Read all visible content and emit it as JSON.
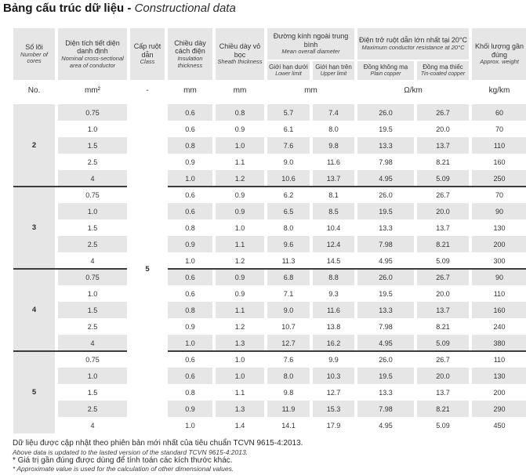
{
  "title": {
    "vi": "Bảng cấu trúc dữ liệu",
    "sep": " - ",
    "en": "Constructional data"
  },
  "table": {
    "headers": {
      "cores": {
        "vi": "Số lõi",
        "en": "Number of cores"
      },
      "area": {
        "vi": "Diện tích tiết diện danh định",
        "en": "Nominal cross-sectional area of conductor"
      },
      "class": {
        "vi": "Cấp ruột dẫn",
        "en": "Class"
      },
      "insulation": {
        "vi": "Chiều dày cách điện",
        "en": "Insulation thickness"
      },
      "sheath": {
        "vi": "Chiều dày vỏ bọc",
        "en": "Sheath thickness"
      },
      "diameter": {
        "vi": "Đường kính ngoài trung bình",
        "en": "Mean overall diameter",
        "sub": {
          "lower": {
            "vi": "Giới hạn dưới",
            "en": "Lower limit"
          },
          "upper": {
            "vi": "Giới hạn trên",
            "en": "Upper limit"
          }
        }
      },
      "resistance": {
        "vi": "Điện trở ruột dẫn lớn nhất tại 20°C",
        "en": "Maximum conductor resistance at 20°C",
        "sub": {
          "plain": {
            "vi": "Đồng không mạ",
            "en": "Plain copper"
          },
          "tinned": {
            "vi": "Đồng mạ thiếc",
            "en": "Tin-coated copper"
          }
        }
      },
      "weight": {
        "vi": "Khối lượng gần đúng",
        "en": "Approx. weight"
      }
    },
    "units": {
      "cores": "No.",
      "area": "mm²",
      "class": "-",
      "insulation": "mm",
      "sheath": "mm",
      "diameter": "mm",
      "resistance": "Ω/km",
      "weight": "kg/km"
    },
    "class_value": "5",
    "groups": [
      {
        "cores": "2",
        "rows": [
          [
            "0.75",
            "0.6",
            "0.8",
            "5.7",
            "7.4",
            "26.0",
            "26.7",
            "60"
          ],
          [
            "1.0",
            "0.6",
            "0.9",
            "6.1",
            "8.0",
            "19.5",
            "20.0",
            "70"
          ],
          [
            "1.5",
            "0.8",
            "1.0",
            "7.6",
            "9.8",
            "13.3",
            "13.7",
            "110"
          ],
          [
            "2.5",
            "0.9",
            "1.1",
            "9.0",
            "11.6",
            "7.98",
            "8.21",
            "160"
          ],
          [
            "4",
            "1.0",
            "1.2",
            "10.6",
            "13.7",
            "4.95",
            "5.09",
            "250"
          ]
        ]
      },
      {
        "cores": "3",
        "rows": [
          [
            "0.75",
            "0.6",
            "0.9",
            "6.2",
            "8.1",
            "26.0",
            "26.7",
            "70"
          ],
          [
            "1.0",
            "0.6",
            "0.9",
            "6.5",
            "8.5",
            "19.5",
            "20.0",
            "90"
          ],
          [
            "1.5",
            "0.8",
            "1.0",
            "8.0",
            "10.4",
            "13.3",
            "13.7",
            "130"
          ],
          [
            "2.5",
            "0.9",
            "1.1",
            "9.6",
            "12.4",
            "7.98",
            "8.21",
            "200"
          ],
          [
            "4",
            "1.0",
            "1.2",
            "11.3",
            "14.5",
            "4.95",
            "5.09",
            "300"
          ]
        ]
      },
      {
        "cores": "4",
        "rows": [
          [
            "0.75",
            "0.6",
            "0.9",
            "6.8",
            "8.8",
            "26.0",
            "26.7",
            "90"
          ],
          [
            "1.0",
            "0.6",
            "0.9",
            "7.1",
            "9.3",
            "19.5",
            "20.0",
            "110"
          ],
          [
            "1.5",
            "0.8",
            "1.1",
            "9.0",
            "11.6",
            "13.3",
            "13.7",
            "160"
          ],
          [
            "2.5",
            "0.9",
            "1.2",
            "10.7",
            "13.8",
            "7.98",
            "8.21",
            "240"
          ],
          [
            "4",
            "1.0",
            "1.3",
            "12.7",
            "16.2",
            "4.95",
            "5.09",
            "380"
          ]
        ]
      },
      {
        "cores": "5",
        "rows": [
          [
            "0.75",
            "0.6",
            "1.0",
            "7.6",
            "9.9",
            "26.0",
            "26.7",
            "110"
          ],
          [
            "1.0",
            "0.6",
            "1.0",
            "8.0",
            "10.3",
            "19.5",
            "20.0",
            "130"
          ],
          [
            "1.5",
            "0.8",
            "1.1",
            "9.8",
            "12.7",
            "13.3",
            "13.7",
            "200"
          ],
          [
            "2.5",
            "0.9",
            "1.3",
            "11.9",
            "15.3",
            "7.98",
            "8.21",
            "290"
          ],
          [
            "4",
            "1.0",
            "1.4",
            "14.1",
            "17.9",
            "4.95",
            "5.09",
            "450"
          ]
        ]
      }
    ]
  },
  "colors": {
    "stripe": "#e6e6e6",
    "separator": "#3c3c3c"
  },
  "footnotes": [
    {
      "text": "Dữ liệu được cập nhật theo phiên bản mới nhất của tiêu chuẩn TCVN 9615-4:2013."
    },
    {
      "text": "Above data is updated to the lasted version of the standard TCVN 9615-4:2013."
    },
    {
      "text": "* Giá trị gần đúng được dùng để tính toán các kích thước khác."
    },
    {
      "text": "* Approximate value is used for the calculation of other dimensional values."
    }
  ]
}
